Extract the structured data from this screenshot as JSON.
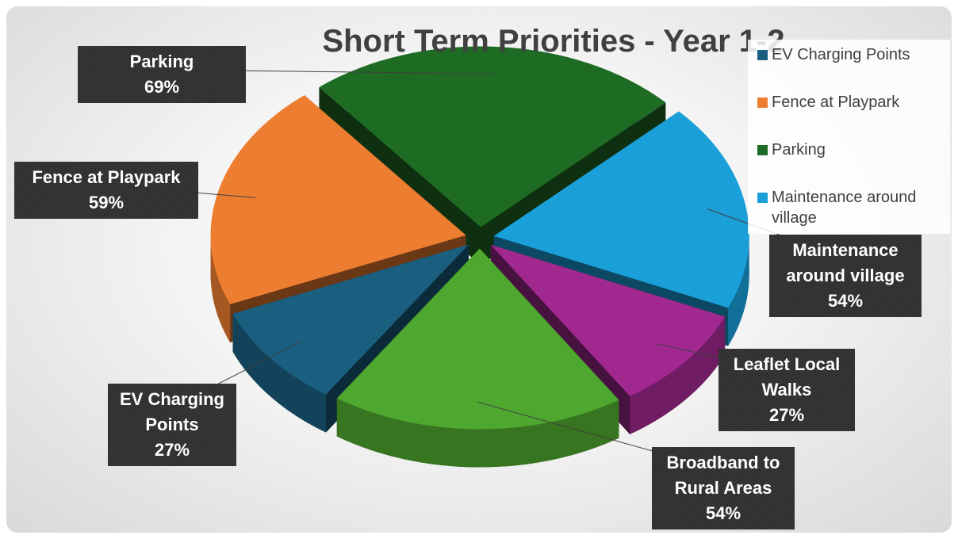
{
  "chart_data": {
    "type": "pie",
    "title": "Short Term Priorities - Year 1-2",
    "categories": [
      "EV Charging Points",
      "Fence at Playpark",
      "Parking",
      "Maintenance around village",
      "Leaflet Local Walks",
      "Broadband to Rural Areas"
    ],
    "values": [
      27,
      59,
      69,
      54,
      27,
      54
    ],
    "value_labels": [
      "27%",
      "59%",
      "69%",
      "54%",
      "27%",
      "54%"
    ],
    "colors": [
      "#1a5f80",
      "#ed7d31",
      "#1e6b24",
      "#1a9fd8",
      "#a0288f",
      "#4ea72e"
    ],
    "legend": "top-right"
  }
}
